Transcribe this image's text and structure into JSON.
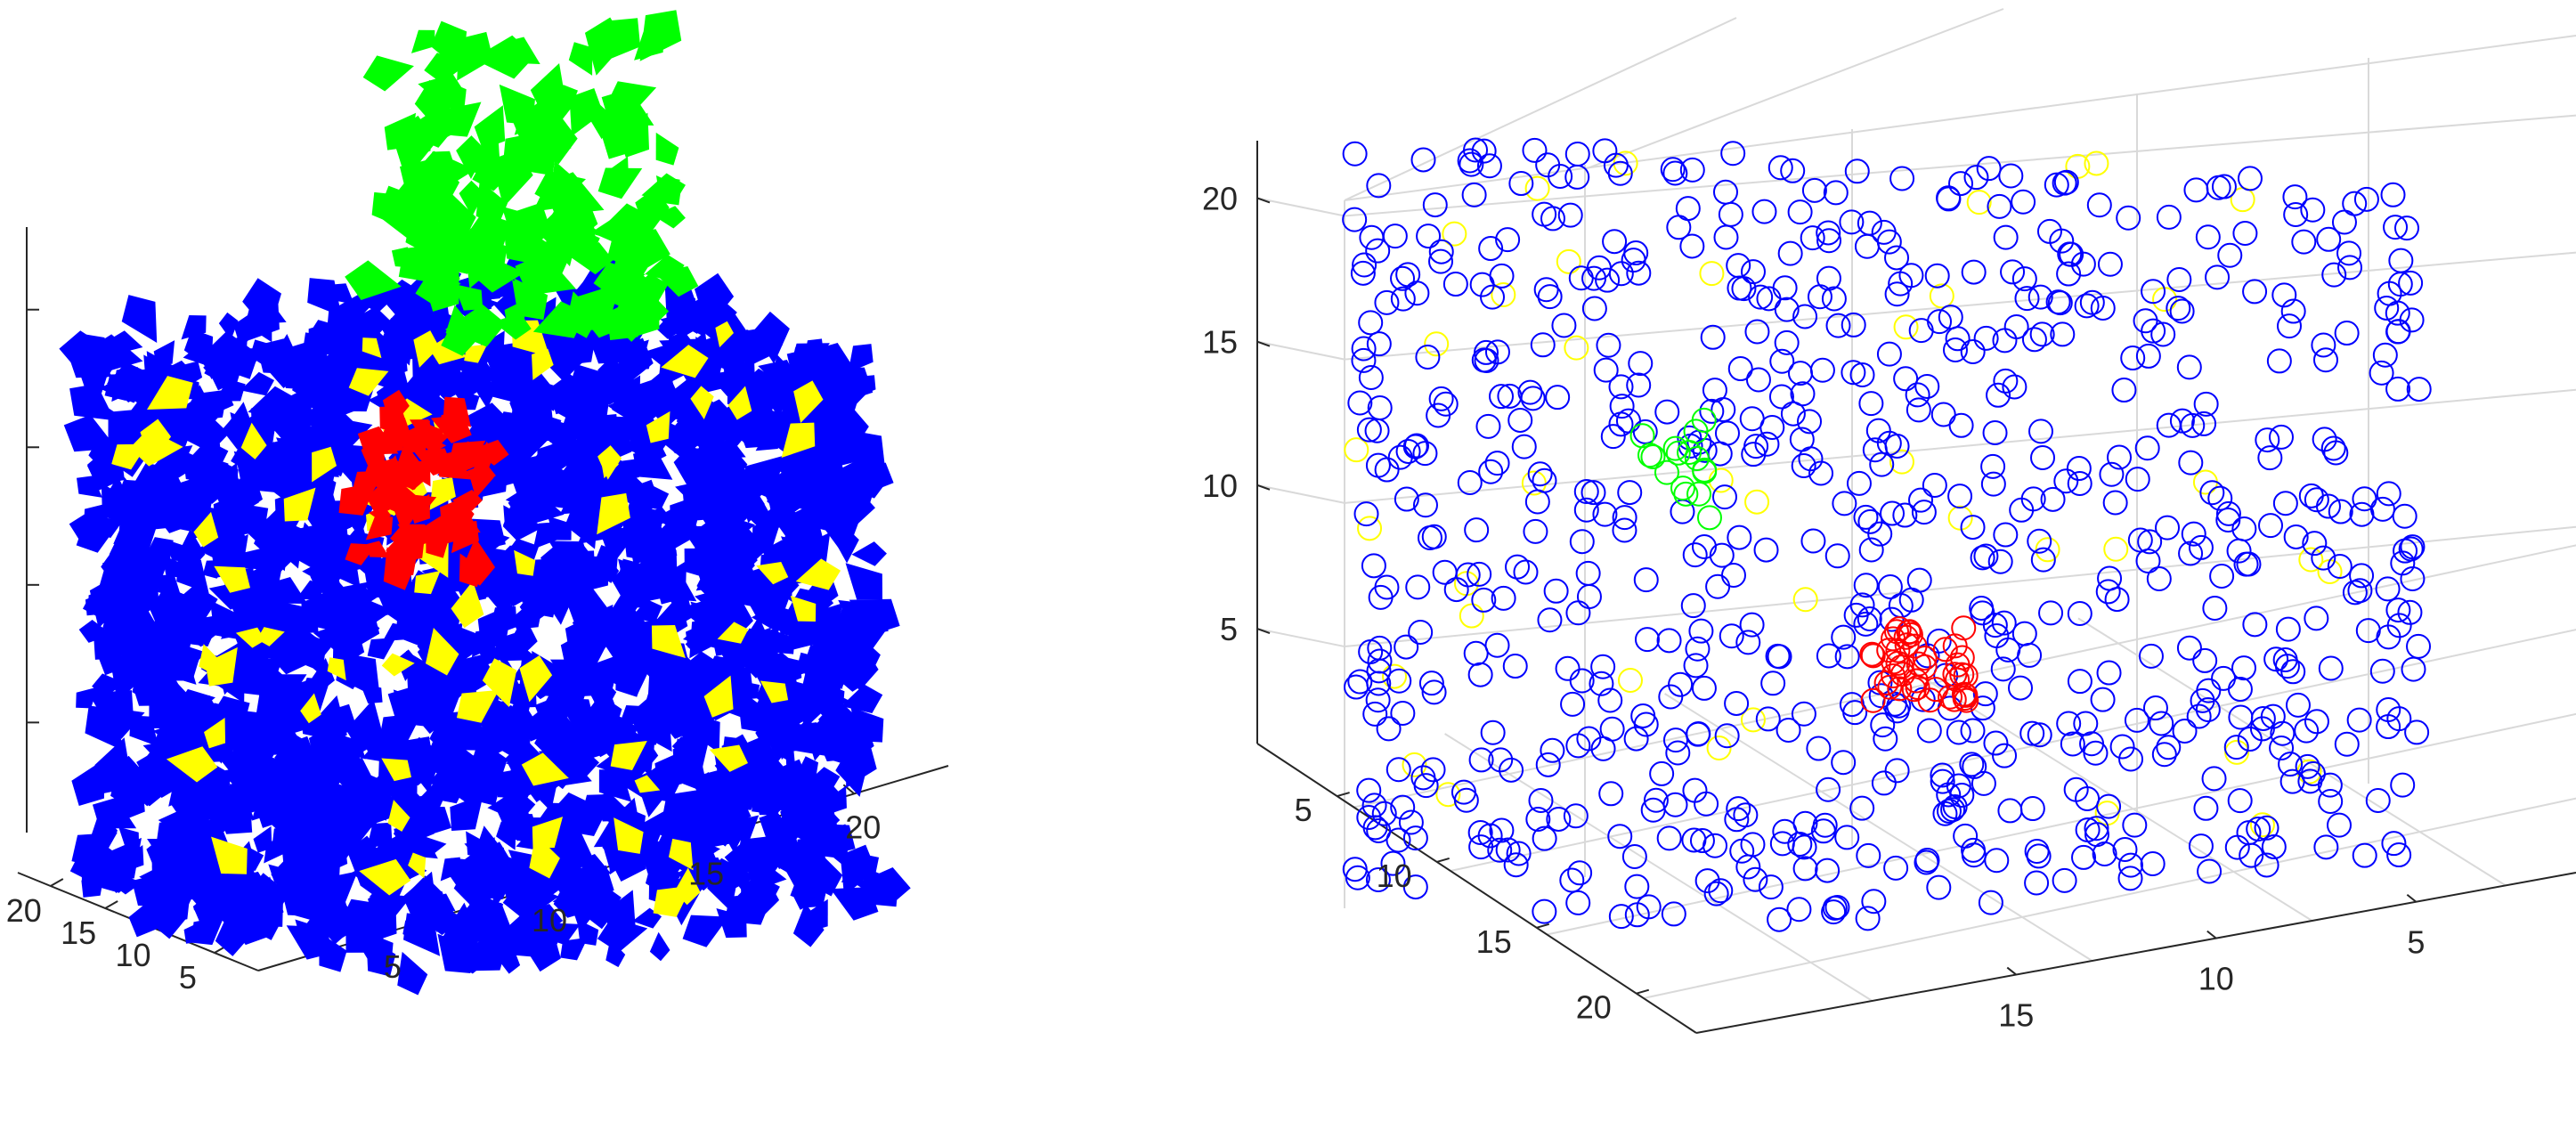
{
  "chart_data": [
    {
      "type": "quiver3",
      "title": "",
      "xlabel": "",
      "ylabel": "",
      "zlabel": "",
      "axes": {
        "left_axis": {
          "ticks": [
            5,
            10,
            15,
            20
          ],
          "labels": [
            "5",
            "10",
            "15",
            "20"
          ]
        },
        "right_axis": {
          "ticks": [
            5,
            10,
            15,
            20
          ],
          "labels": [
            "5",
            "10",
            "15",
            "20"
          ]
        },
        "z_axis": {
          "ticks": [
            5,
            10,
            15,
            20
          ],
          "labels": [
            "",
            "",
            "",
            ""
          ]
        }
      },
      "xlim": [
        1,
        23
      ],
      "ylim": [
        1,
        23
      ],
      "zlim": [
        1,
        23
      ],
      "grid": false,
      "series": [
        {
          "color": "#0000ff",
          "region": "whole volume",
          "approx_count": 700
        },
        {
          "color": "#ffff00",
          "region": "scattered",
          "approx_count": 60
        },
        {
          "color": "#ff0000",
          "region": "cluster upper-left interior",
          "approx_count": 30
        },
        {
          "color": "#00ff00",
          "region": "cluster above top",
          "approx_count": 60
        }
      ]
    },
    {
      "type": "scatter3",
      "title": "",
      "xlabel": "",
      "ylabel": "",
      "zlabel": "",
      "axes": {
        "z_axis": {
          "ticks": [
            5,
            10,
            15,
            20
          ],
          "labels": [
            "5",
            "10",
            "15",
            "20"
          ]
        },
        "left_axis": {
          "ticks": [
            5,
            10,
            15,
            20
          ],
          "labels": [
            "5",
            "10",
            "15",
            "20"
          ]
        },
        "right_axis": {
          "ticks": [
            5,
            10,
            15
          ],
          "labels": [
            "5",
            "10",
            "15"
          ]
        }
      },
      "xlim": [
        1,
        23
      ],
      "ylim": [
        1,
        23
      ],
      "zlim": [
        1,
        22
      ],
      "grid": true,
      "marker": "circle",
      "series": [
        {
          "color": "#0000ff",
          "region": "whole volume",
          "approx_count": 700
        },
        {
          "color": "#ffff00",
          "region": "scattered",
          "approx_count": 40
        },
        {
          "color": "#ff0000",
          "region": "cluster center-bottom",
          "approx_count": 30
        },
        {
          "color": "#00ff00",
          "region": "cluster left-middle",
          "approx_count": 15
        }
      ]
    }
  ]
}
